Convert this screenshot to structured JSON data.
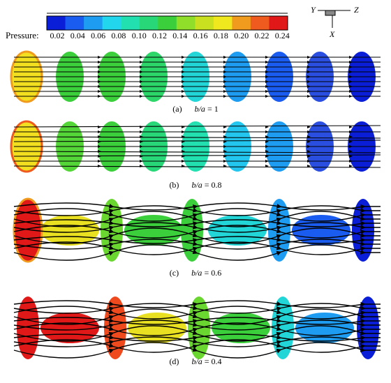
{
  "colorbar": {
    "label": "Pressure:",
    "ticks": [
      "0.02",
      "0.04",
      "0.06",
      "0.08",
      "0.10",
      "0.12",
      "0.14",
      "0.16",
      "0.18",
      "0.20",
      "0.22",
      "0.24"
    ]
  },
  "axes": {
    "y": "Y",
    "z": "Z",
    "x": "X"
  },
  "panels": [
    {
      "label": "(a)",
      "param": "b/a",
      "value": "= 1"
    },
    {
      "label": "(b)",
      "param": "b/a",
      "value": "= 0.8"
    },
    {
      "label": "(c)",
      "param": "b/a",
      "value": "= 0.6"
    },
    {
      "label": "(d)",
      "param": "b/a",
      "value": "= 0.4"
    }
  ]
}
